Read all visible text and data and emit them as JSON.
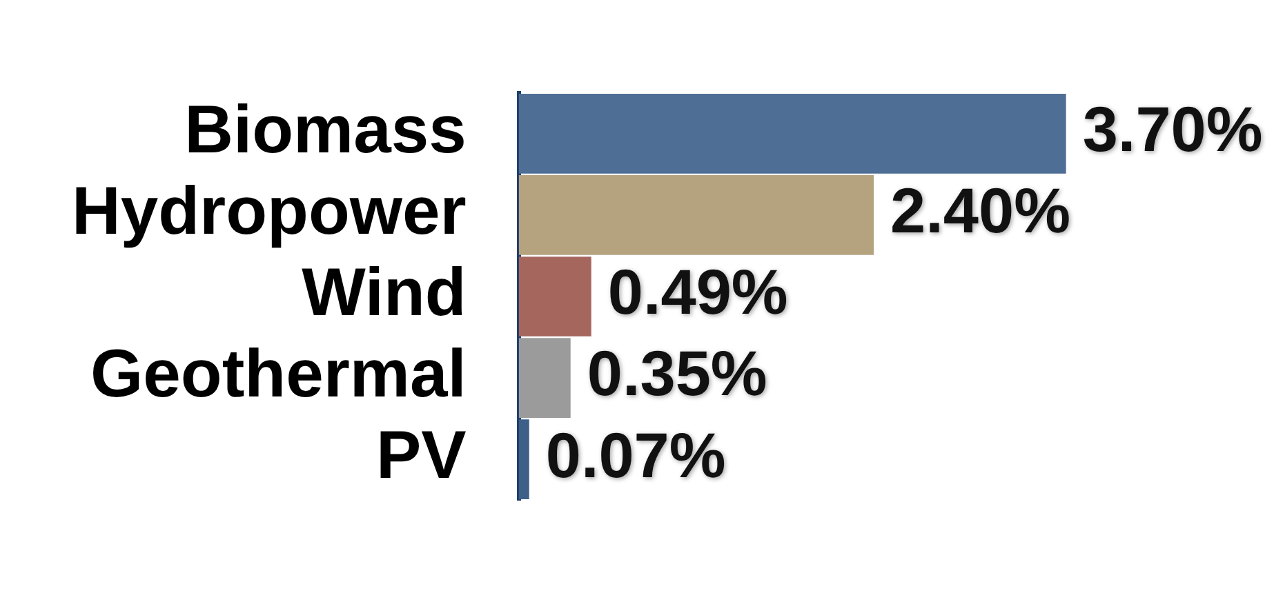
{
  "chart_data": {
    "type": "bar",
    "orientation": "horizontal",
    "categories": [
      "Biomass",
      "Hydropower",
      "Wind",
      "Geothermal",
      "PV"
    ],
    "values": [
      3.7,
      2.4,
      0.49,
      0.35,
      0.07
    ],
    "colors": [
      "#4f6e95",
      "#b5a27f",
      "#a5665d",
      "#9b9b9b",
      "#3d5f88"
    ],
    "value_labels": [
      "3.70%",
      "2.40%",
      "0.49%",
      "0.35%",
      "0.07%"
    ],
    "grid": false,
    "legend": false,
    "tick_labels": "y"
  }
}
